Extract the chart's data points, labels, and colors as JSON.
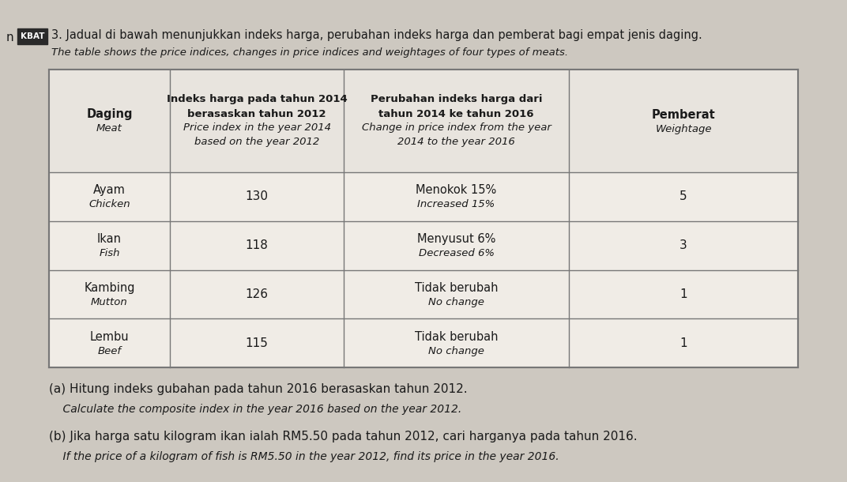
{
  "title_malay": "3. Jadual di bawah menunjukkan indeks harga, perubahan indeks harga dan pemberat bagi empat jenis daging.",
  "title_english": "The table shows the price indices, changes in price indices and weightages of four types of meats.",
  "title_prefix": "n",
  "kbat_label": "KBAT",
  "col1_header_malay": "Daging",
  "col1_header_english": "Meat",
  "col2_header_line1": "Indeks harga pada tahun 2014",
  "col2_header_line2": "berasaskan tahun 2012",
  "col2_header_line3": "Price index in the year 2014",
  "col2_header_line4": "based on the year 2012",
  "col3_header_line1": "Perubahan indeks harga dari",
  "col3_header_line2": "tahun 2014 ke tahun 2016",
  "col3_header_line3": "Change in price index from the year",
  "col3_header_line4": "2014 to the year 2016",
  "col4_header_malay": "Pemberat",
  "col4_header_english": "Weightage",
  "rows": [
    {
      "meat_malay": "Ayam",
      "meat_english": "Chicken",
      "price_index": "130",
      "change_malay": "Menokok 15%",
      "change_english": "Increased 15%",
      "weightage": "5"
    },
    {
      "meat_malay": "Ikan",
      "meat_english": "Fish",
      "price_index": "118",
      "change_malay": "Menyusut 6%",
      "change_english": "Decreased 6%",
      "weightage": "3"
    },
    {
      "meat_malay": "Kambing",
      "meat_english": "Mutton",
      "price_index": "126",
      "change_malay": "Tidak berubah",
      "change_english": "No change",
      "weightage": "1"
    },
    {
      "meat_malay": "Lembu",
      "meat_english": "Beef",
      "price_index": "115",
      "change_malay": "Tidak berubah",
      "change_english": "No change",
      "weightage": "1"
    }
  ],
  "question_a_malay": "(a) Hitung indeks gubahan pada tahun 2016 berasaskan tahun 2012.",
  "question_a_english": "    Calculate the composite index in the year 2016 based on the year 2012.",
  "question_b_malay": "(b) Jika harga satu kilogram ikan ialah RM5.50 pada tahun 2012, cari harganya pada tahun 2016.",
  "question_b_english": "    If the price of a kilogram of fish is RM5.50 in the year 2012, find its price in the year 2016.",
  "bg_color": "#cdc8c0",
  "table_bg_light": "#f0ece6",
  "table_bg_mid": "#e8e4de",
  "grid_color": "#777777",
  "text_color": "#1a1a1a",
  "fig_w": 10.72,
  "fig_h": 6.1,
  "dpi": 100
}
